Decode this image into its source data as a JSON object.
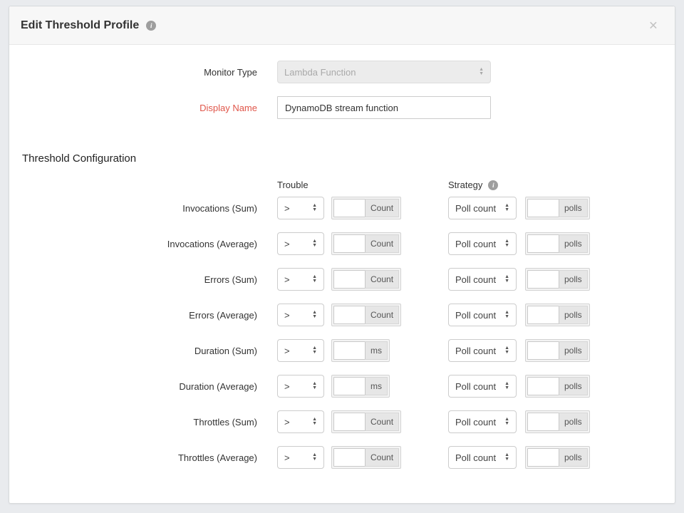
{
  "modal": {
    "title": "Edit Threshold Profile",
    "close_glyph": "×",
    "info_glyph": "i"
  },
  "form": {
    "monitor_type": {
      "label": "Monitor Type",
      "value": "Lambda Function"
    },
    "display_name": {
      "label": "Display Name",
      "value": "DynamoDB stream function"
    }
  },
  "threshold": {
    "heading": "Threshold Configuration",
    "columns": {
      "trouble": "Trouble",
      "strategy": "Strategy"
    },
    "rows": [
      {
        "label": "Invocations (Sum)",
        "comparator": ">",
        "value": "",
        "unit": "Count",
        "strategy": "Poll count",
        "strategy_value": "",
        "strategy_unit": "polls"
      },
      {
        "label": "Invocations (Average)",
        "comparator": ">",
        "value": "",
        "unit": "Count",
        "strategy": "Poll count",
        "strategy_value": "",
        "strategy_unit": "polls"
      },
      {
        "label": "Errors (Sum)",
        "comparator": ">",
        "value": "",
        "unit": "Count",
        "strategy": "Poll count",
        "strategy_value": "",
        "strategy_unit": "polls"
      },
      {
        "label": "Errors (Average)",
        "comparator": ">",
        "value": "",
        "unit": "Count",
        "strategy": "Poll count",
        "strategy_value": "",
        "strategy_unit": "polls"
      },
      {
        "label": "Duration (Sum)",
        "comparator": ">",
        "value": "",
        "unit": "ms",
        "strategy": "Poll count",
        "strategy_value": "",
        "strategy_unit": "polls"
      },
      {
        "label": "Duration (Average)",
        "comparator": ">",
        "value": "",
        "unit": "ms",
        "strategy": "Poll count",
        "strategy_value": "",
        "strategy_unit": "polls"
      },
      {
        "label": "Throttles (Sum)",
        "comparator": ">",
        "value": "",
        "unit": "Count",
        "strategy": "Poll count",
        "strategy_value": "",
        "strategy_unit": "polls"
      },
      {
        "label": "Throttles (Average)",
        "comparator": ">",
        "value": "",
        "unit": "Count",
        "strategy": "Poll count",
        "strategy_value": "",
        "strategy_unit": "polls"
      }
    ]
  },
  "colors": {
    "required_label": "#e0564a",
    "page_background": "#e9ebee",
    "header_background": "#f7f7f7",
    "addon_background": "#e6e6e6"
  },
  "glyphs": {
    "spinner_up": "▲",
    "spinner_down": "▼"
  }
}
